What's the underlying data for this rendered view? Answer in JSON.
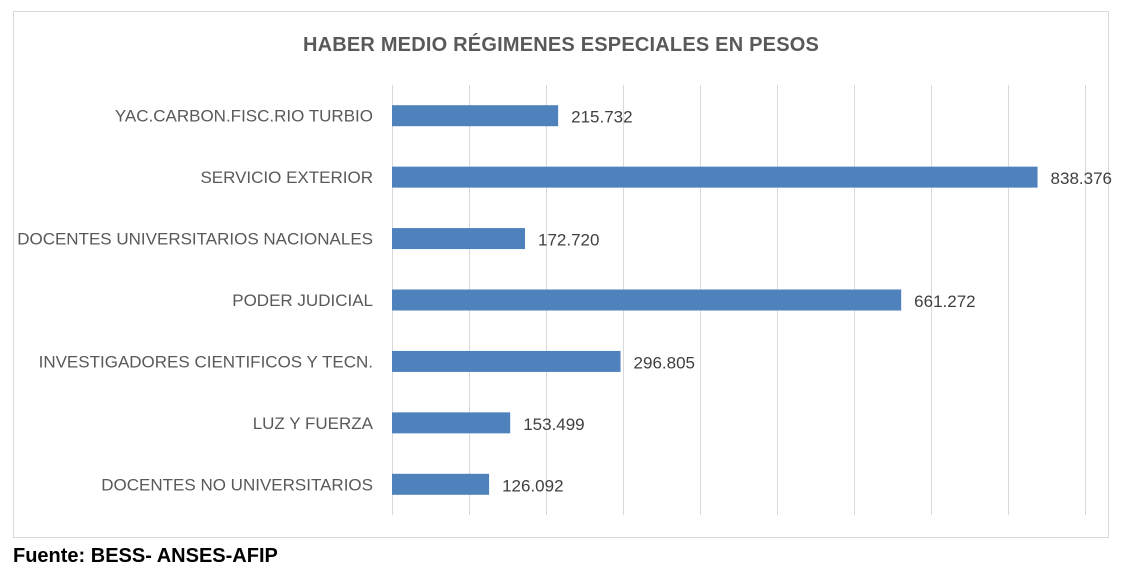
{
  "chart_data": {
    "type": "bar",
    "orientation": "horizontal",
    "title": "HABER MEDIO RÉGIMENES ESPECIALES EN PESOS",
    "categories": [
      "YAC.CARBON.FISC.RIO TURBIO",
      "SERVICIO EXTERIOR",
      "DOCENTES UNIVERSITARIOS NACIONALES",
      "PODER JUDICIAL",
      "INVESTIGADORES CIENTIFICOS Y TECN.",
      "LUZ Y FUERZA",
      "DOCENTES NO UNIVERSITARIOS"
    ],
    "values": [
      215732,
      838376,
      172720,
      661272,
      296805,
      153499,
      126092
    ],
    "value_labels": [
      "215.732",
      "838.376",
      "172.720",
      "661.272",
      "296.805",
      "153.499",
      "126.092"
    ],
    "xlim": [
      0,
      900000
    ],
    "x_gridline_step": 100000,
    "grid": "vertical",
    "bar_color": "#4f81bd"
  },
  "footer": {
    "source": "Fuente: BESS- ANSES-AFIP"
  }
}
